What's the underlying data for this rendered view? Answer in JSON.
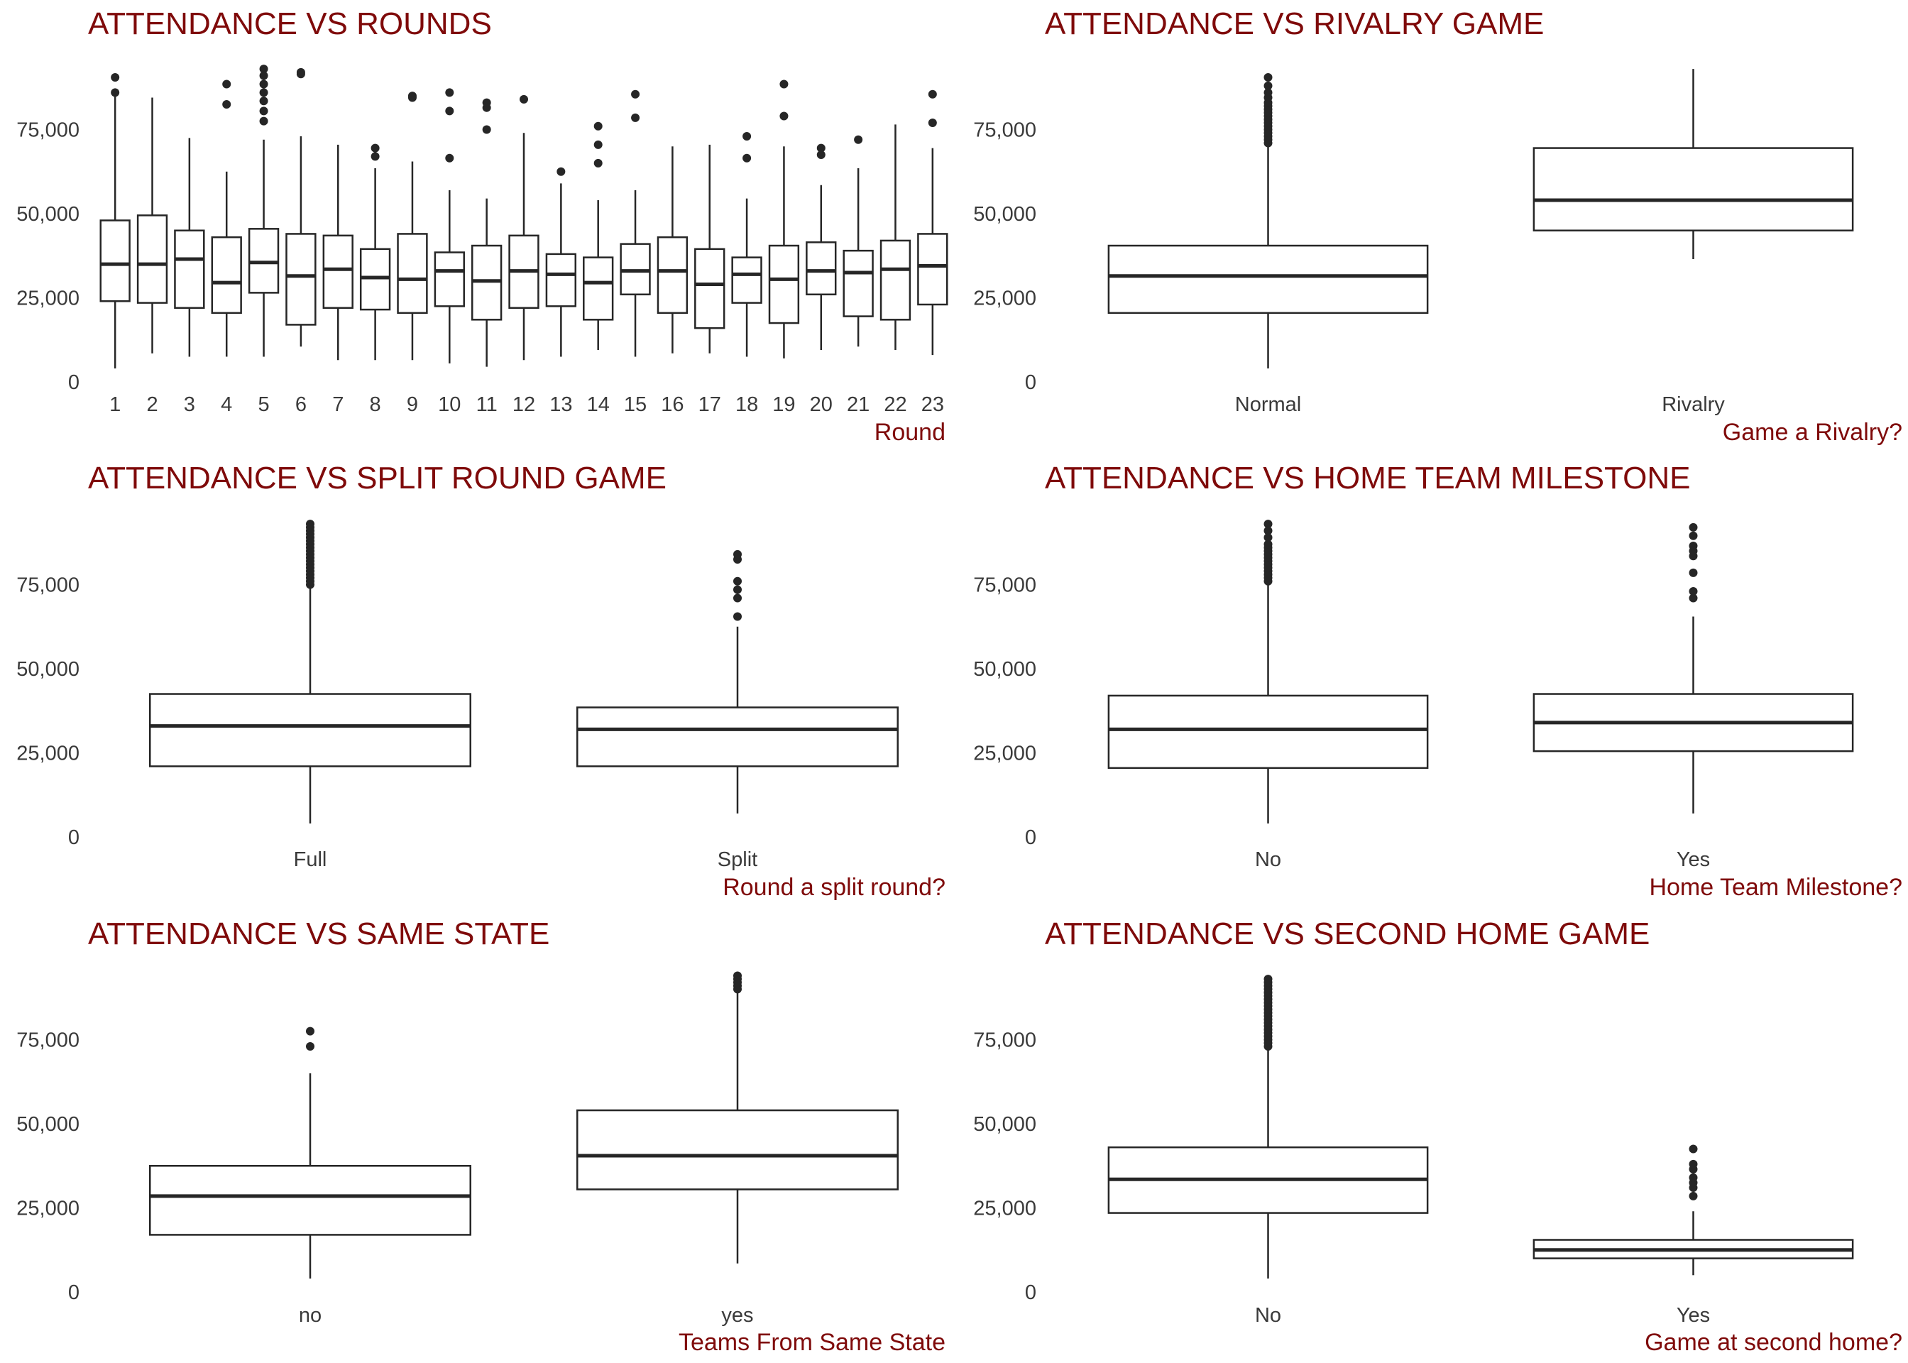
{
  "chart_data": [
    {
      "type": "box",
      "title": "ATTENDANCE VS ROUNDS",
      "xlabel": "Round",
      "ylim": [
        0,
        95000
      ],
      "yticks": [
        0,
        25000,
        50000,
        75000
      ],
      "ytick_labels": [
        "0",
        "25,000",
        "50,000",
        "75,000"
      ],
      "categories": [
        "1",
        "2",
        "3",
        "4",
        "5",
        "6",
        "7",
        "8",
        "9",
        "10",
        "11",
        "12",
        "13",
        "14",
        "15",
        "16",
        "17",
        "18",
        "19",
        "20",
        "21",
        "22",
        "23"
      ],
      "boxes": [
        {
          "low": 4000,
          "q1": 24000,
          "median": 35000,
          "q3": 48000,
          "high": 85000,
          "outliers": [
            86000,
            90500
          ]
        },
        {
          "low": 8500,
          "q1": 23500,
          "median": 35000,
          "q3": 49500,
          "high": 84500,
          "outliers": []
        },
        {
          "low": 7500,
          "q1": 22000,
          "median": 36500,
          "q3": 45000,
          "high": 72500,
          "outliers": []
        },
        {
          "low": 7500,
          "q1": 20500,
          "median": 29500,
          "q3": 43000,
          "high": 62500,
          "outliers": [
            82500,
            88500
          ]
        },
        {
          "low": 7500,
          "q1": 26500,
          "median": 35500,
          "q3": 45500,
          "high": 72000,
          "outliers": [
            77500,
            80500,
            83500,
            86000,
            88500,
            91000,
            93000
          ]
        },
        {
          "low": 10500,
          "q1": 17000,
          "median": 31500,
          "q3": 44000,
          "high": 73000,
          "outliers": [
            91500,
            92000
          ]
        },
        {
          "low": 6500,
          "q1": 22000,
          "median": 33500,
          "q3": 43500,
          "high": 70500,
          "outliers": []
        },
        {
          "low": 6500,
          "q1": 21500,
          "median": 31000,
          "q3": 39500,
          "high": 63500,
          "outliers": [
            67000,
            69500
          ]
        },
        {
          "low": 6500,
          "q1": 20500,
          "median": 30500,
          "q3": 44000,
          "high": 65500,
          "outliers": [
            84500,
            85000
          ]
        },
        {
          "low": 5500,
          "q1": 22500,
          "median": 33000,
          "q3": 38500,
          "high": 57000,
          "outliers": [
            66500,
            80500,
            86000
          ]
        },
        {
          "low": 4500,
          "q1": 18500,
          "median": 30000,
          "q3": 40500,
          "high": 54500,
          "outliers": [
            75000,
            81500,
            83000
          ]
        },
        {
          "low": 6500,
          "q1": 22000,
          "median": 33000,
          "q3": 43500,
          "high": 74000,
          "outliers": [
            84000
          ]
        },
        {
          "low": 7500,
          "q1": 22500,
          "median": 32000,
          "q3": 38000,
          "high": 59000,
          "outliers": [
            62500
          ]
        },
        {
          "low": 9500,
          "q1": 18500,
          "median": 29500,
          "q3": 37000,
          "high": 54000,
          "outliers": [
            65000,
            70500,
            76000
          ]
        },
        {
          "low": 7500,
          "q1": 26000,
          "median": 33000,
          "q3": 41000,
          "high": 57000,
          "outliers": [
            78500,
            85500
          ]
        },
        {
          "low": 8500,
          "q1": 20500,
          "median": 33000,
          "q3": 43000,
          "high": 70000,
          "outliers": []
        },
        {
          "low": 8500,
          "q1": 16000,
          "median": 29000,
          "q3": 39500,
          "high": 70500,
          "outliers": []
        },
        {
          "low": 7500,
          "q1": 23500,
          "median": 32000,
          "q3": 37000,
          "high": 54500,
          "outliers": [
            66500,
            73000
          ]
        },
        {
          "low": 7000,
          "q1": 17500,
          "median": 30500,
          "q3": 40500,
          "high": 70000,
          "outliers": [
            79000,
            88500
          ]
        },
        {
          "low": 9500,
          "q1": 26000,
          "median": 33000,
          "q3": 41500,
          "high": 58500,
          "outliers": [
            67500,
            69500
          ]
        },
        {
          "low": 10500,
          "q1": 19500,
          "median": 32500,
          "q3": 39000,
          "high": 63500,
          "outliers": [
            72000
          ]
        },
        {
          "low": 9500,
          "q1": 18500,
          "median": 33500,
          "q3": 42000,
          "high": 76500,
          "outliers": []
        },
        {
          "low": 8000,
          "q1": 23000,
          "median": 34500,
          "q3": 44000,
          "high": 69500,
          "outliers": [
            77000,
            85500
          ]
        }
      ]
    },
    {
      "type": "box",
      "title": "ATTENDANCE VS RIVALRY GAME",
      "xlabel": "Game a Rivalry?",
      "ylim": [
        0,
        95000
      ],
      "yticks": [
        0,
        25000,
        50000,
        75000
      ],
      "ytick_labels": [
        "0",
        "25,000",
        "50,000",
        "75,000"
      ],
      "categories": [
        "Normal",
        "Rivalry"
      ],
      "boxes": [
        {
          "low": 4000,
          "q1": 20500,
          "median": 31500,
          "q3": 40500,
          "high": 70500,
          "outliers": [
            71000,
            72000,
            73000,
            74000,
            75000,
            76000,
            77000,
            78000,
            79000,
            80000,
            81000,
            82000,
            83000,
            84500,
            86000,
            88000,
            90500
          ]
        },
        {
          "low": 36500,
          "q1": 45000,
          "median": 54000,
          "q3": 69500,
          "high": 93000,
          "outliers": []
        }
      ]
    },
    {
      "type": "box",
      "title": "ATTENDANCE VS SPLIT ROUND GAME",
      "xlabel": "Round a split round?",
      "ylim": [
        0,
        95000
      ],
      "yticks": [
        0,
        25000,
        50000,
        75000
      ],
      "ytick_labels": [
        "0",
        "25,000",
        "50,000",
        "75,000"
      ],
      "categories": [
        "Full",
        "Split"
      ],
      "boxes": [
        {
          "low": 4000,
          "q1": 21000,
          "median": 33000,
          "q3": 42500,
          "high": 74500,
          "outliers": [
            75000,
            76000,
            77000,
            78000,
            79000,
            80000,
            81000,
            82000,
            83000,
            84000,
            85000,
            86000,
            87000,
            88000,
            89000,
            90000,
            91000,
            92000,
            93000
          ]
        },
        {
          "low": 7000,
          "q1": 21000,
          "median": 32000,
          "q3": 38500,
          "high": 62500,
          "outliers": [
            65500,
            71000,
            73500,
            76000,
            82500,
            84000
          ]
        }
      ]
    },
    {
      "type": "box",
      "title": "ATTENDANCE VS HOME TEAM MILESTONE",
      "xlabel": "Home Team Milestone?",
      "ylim": [
        0,
        95000
      ],
      "yticks": [
        0,
        25000,
        50000,
        75000
      ],
      "ytick_labels": [
        "0",
        "25,000",
        "50,000",
        "75,000"
      ],
      "categories": [
        "No",
        "Yes"
      ],
      "boxes": [
        {
          "low": 4000,
          "q1": 20500,
          "median": 32000,
          "q3": 42000,
          "high": 75500,
          "outliers": [
            76000,
            77000,
            78000,
            79000,
            80000,
            81000,
            82000,
            83000,
            84000,
            85000,
            86000,
            87000,
            89000,
            91000,
            93000
          ]
        },
        {
          "low": 7000,
          "q1": 25500,
          "median": 34000,
          "q3": 42500,
          "high": 65500,
          "outliers": [
            71000,
            73000,
            78500,
            83500,
            85000,
            86500,
            89500,
            92000
          ]
        }
      ]
    },
    {
      "type": "box",
      "title": "ATTENDANCE VS SAME STATE",
      "xlabel": "Teams From Same State",
      "ylim": [
        0,
        95000
      ],
      "yticks": [
        0,
        25000,
        50000,
        75000
      ],
      "ytick_labels": [
        "0",
        "25,000",
        "50,000",
        "75,000"
      ],
      "categories": [
        "no",
        "yes"
      ],
      "boxes": [
        {
          "low": 4000,
          "q1": 17000,
          "median": 28500,
          "q3": 37500,
          "high": 65000,
          "outliers": [
            73000,
            77500
          ]
        },
        {
          "low": 8500,
          "q1": 30500,
          "median": 40500,
          "q3": 54000,
          "high": 89500,
          "outliers": [
            90000,
            91000,
            92000,
            93000,
            94000
          ]
        }
      ]
    },
    {
      "type": "box",
      "title": "ATTENDANCE VS SECOND HOME GAME",
      "xlabel": "Game at second home?",
      "ylim": [
        0,
        95000
      ],
      "yticks": [
        0,
        25000,
        50000,
        75000
      ],
      "ytick_labels": [
        "0",
        "25,000",
        "50,000",
        "75,000"
      ],
      "categories": [
        "No",
        "Yes"
      ],
      "boxes": [
        {
          "low": 4000,
          "q1": 23500,
          "median": 33500,
          "q3": 43000,
          "high": 72500,
          "outliers": [
            73000,
            74000,
            75000,
            76000,
            77000,
            78000,
            79000,
            80000,
            81000,
            82000,
            83000,
            84000,
            85000,
            86000,
            87000,
            88000,
            89000,
            90000,
            91000,
            92000,
            93000
          ]
        },
        {
          "low": 5000,
          "q1": 10000,
          "median": 12500,
          "q3": 15500,
          "high": 24000,
          "outliers": [
            28500,
            31000,
            32500,
            34000,
            36500,
            38000,
            42500
          ]
        }
      ]
    }
  ]
}
